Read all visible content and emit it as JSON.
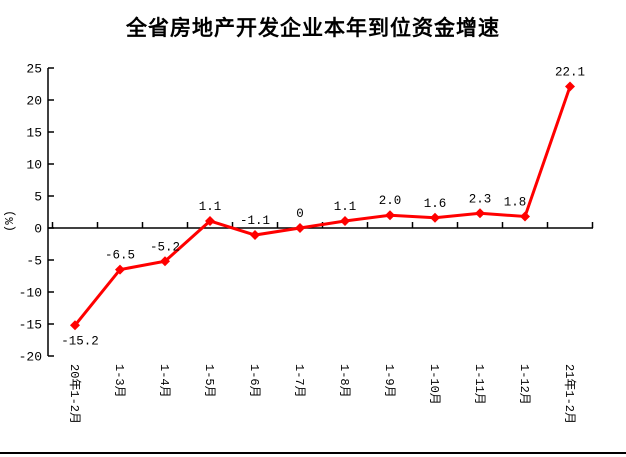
{
  "window": {
    "background": "#ffffff",
    "bottom_rule_color": "#000000"
  },
  "chart_data": {
    "type": "line",
    "title": "全省房地产开发企业本年到位资金增速",
    "ylabel": "(%)",
    "xlabel": "",
    "categories": [
      "20年1-2月",
      "1-3月",
      "1-4月",
      "1-5月",
      "1-6月",
      "1-7月",
      "1-8月",
      "1-9月",
      "1-10月",
      "1-11月",
      "1-12月",
      "21年1-2月"
    ],
    "values": [
      -15.2,
      -6.5,
      -5.2,
      1.1,
      -1.1,
      0,
      1.1,
      2.0,
      1.6,
      2.3,
      1.8,
      22.1
    ],
    "data_labels": [
      "-15.2",
      "-6.5",
      "-5.2",
      "1.1",
      "-1.1",
      "0",
      "1.1",
      "2.0",
      "1.6",
      "2.3",
      "1.8",
      "22.1"
    ],
    "yticks": [
      25,
      20,
      15,
      10,
      5,
      0,
      -5,
      -10,
      -15,
      -20
    ],
    "ylim": [
      -20,
      25
    ],
    "ytick_step": 5,
    "grid": false,
    "legend": "none",
    "marker": "diamond",
    "series_color": "#ff0000",
    "axis_color": "#000000",
    "text_color": "#000000"
  }
}
